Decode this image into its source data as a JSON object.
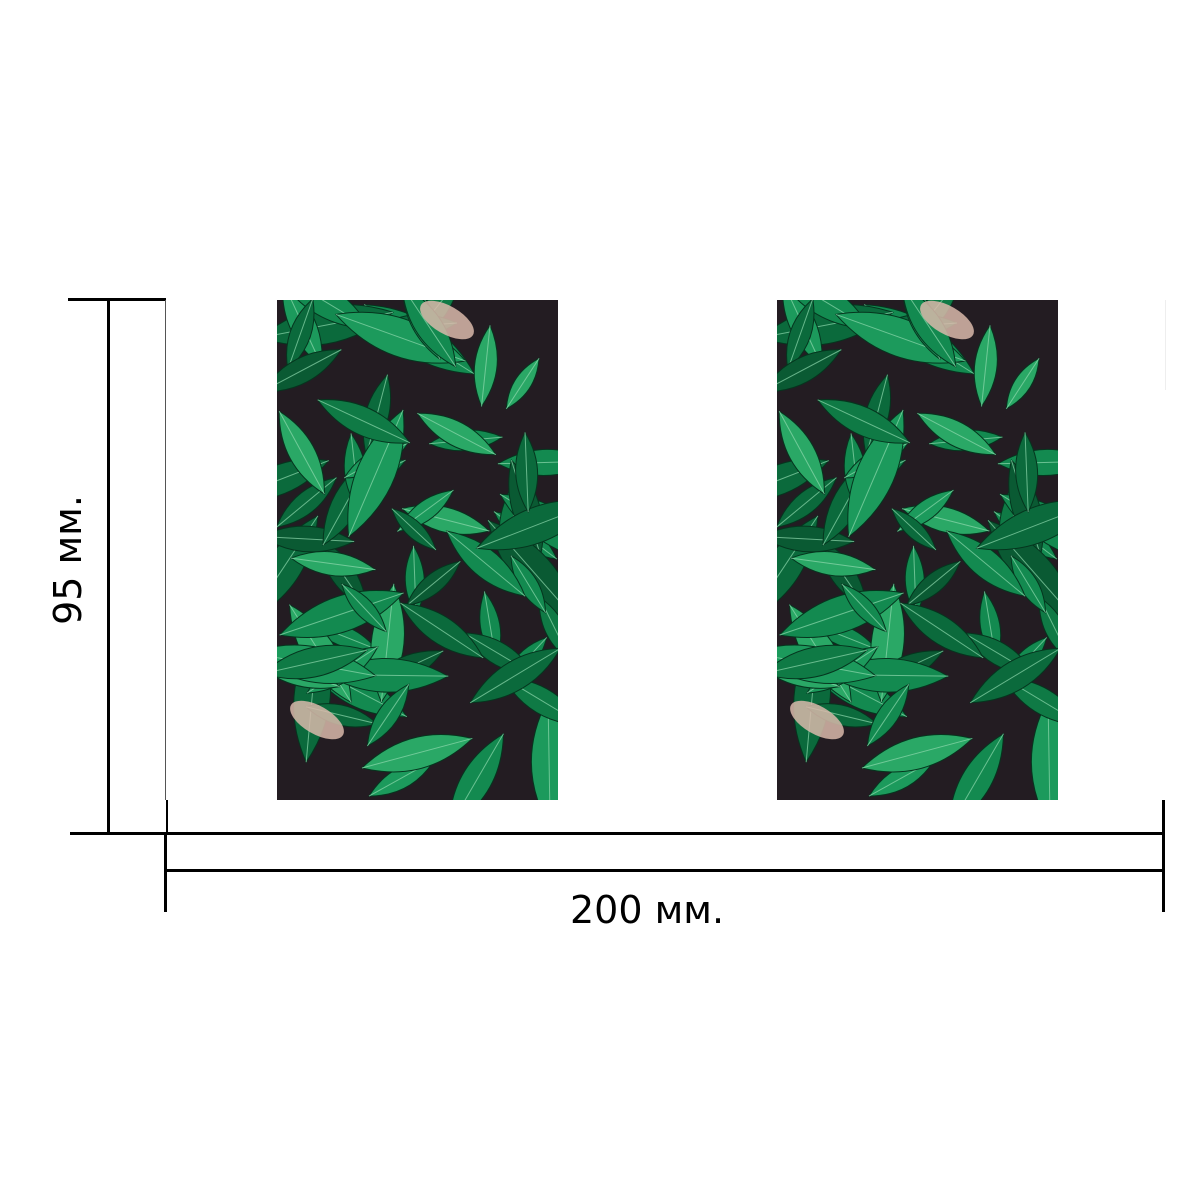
{
  "dimensions": {
    "width_label": "200 мм.",
    "height_label": "95 мм."
  },
  "panels": [
    {
      "pattern": "green-leaves"
    },
    {
      "pattern": "green-leaves"
    }
  ],
  "colors": {
    "leaf": "#0f7a45",
    "leaf_light": "#2aa866",
    "background": "#231c22"
  }
}
